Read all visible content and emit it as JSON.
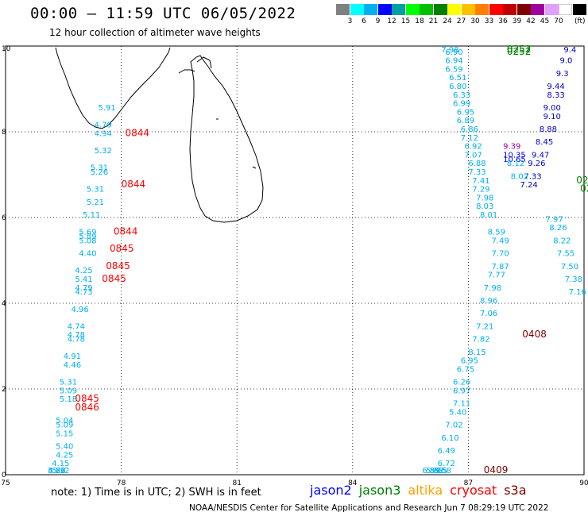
{
  "header": {
    "title": "00:00 – 11:59 UTC 06/05/2022",
    "subtitle": "12 hour collection of altimeter wave heights"
  },
  "legend": {
    "ticks": [
      "3",
      "6",
      "9",
      "12",
      "15",
      "18",
      "21",
      "24",
      "27",
      "30",
      "33",
      "36",
      "39",
      "42",
      "45",
      "70"
    ],
    "unit": "(ft)",
    "colors": [
      "#808080",
      "#00ffff",
      "#00b0f0",
      "#0000ff",
      "#00a0a0",
      "#00ff00",
      "#00c000",
      "#008000",
      "#ffff00",
      "#ffc000",
      "#ff8000",
      "#ff0000",
      "#c00000",
      "#800000",
      "#a000a0",
      "#e0a0ff",
      "#ffffff",
      "#000000"
    ]
  },
  "axes": {
    "x_ticks": [
      "75",
      "78",
      "81",
      "84",
      "87",
      "90"
    ],
    "y_ticks": [
      "0",
      "2",
      "4",
      "6",
      "8",
      "10"
    ]
  },
  "map_data": {
    "extent": {
      "lon": [
        75,
        90
      ],
      "lat": [
        0,
        10
      ]
    },
    "west_track": [
      {
        "lon": 77.4,
        "lat": 8.5,
        "v": "5.91"
      },
      {
        "lon": 77.3,
        "lat": 8.1,
        "v": "4.79"
      },
      {
        "lon": 77.3,
        "lat": 7.9,
        "v": "4.94"
      },
      {
        "lon": 77.3,
        "lat": 7.5,
        "v": "5.32"
      },
      {
        "lon": 77.2,
        "lat": 7.1,
        "v": "5.31"
      },
      {
        "lon": 77.2,
        "lat": 7.0,
        "v": "5.26"
      },
      {
        "lon": 77.1,
        "lat": 6.6,
        "v": "5.31"
      },
      {
        "lon": 77.1,
        "lat": 6.3,
        "v": "5.21"
      },
      {
        "lon": 77.0,
        "lat": 6.0,
        "v": "5.11"
      },
      {
        "lon": 76.9,
        "lat": 5.6,
        "v": "5.69"
      },
      {
        "lon": 76.9,
        "lat": 5.5,
        "v": "5.89"
      },
      {
        "lon": 76.9,
        "lat": 5.4,
        "v": "5.08"
      },
      {
        "lon": 76.9,
        "lat": 5.1,
        "v": "4.40"
      },
      {
        "lon": 76.8,
        "lat": 4.7,
        "v": "4.25"
      },
      {
        "lon": 76.8,
        "lat": 4.5,
        "v": "5.41"
      },
      {
        "lon": 76.8,
        "lat": 4.3,
        "v": "4.79"
      },
      {
        "lon": 76.8,
        "lat": 4.2,
        "v": "4.73"
      },
      {
        "lon": 76.7,
        "lat": 3.8,
        "v": "4.96"
      },
      {
        "lon": 76.6,
        "lat": 3.4,
        "v": "4.74"
      },
      {
        "lon": 76.6,
        "lat": 3.2,
        "v": "4.78"
      },
      {
        "lon": 76.6,
        "lat": 3.1,
        "v": "4.78"
      },
      {
        "lon": 76.5,
        "lat": 2.7,
        "v": "4.91"
      },
      {
        "lon": 76.5,
        "lat": 2.5,
        "v": "4.46"
      },
      {
        "lon": 76.4,
        "lat": 2.1,
        "v": "5.31"
      },
      {
        "lon": 76.4,
        "lat": 1.9,
        "v": "5.09"
      },
      {
        "lon": 76.4,
        "lat": 1.7,
        "v": "5.18"
      },
      {
        "lon": 76.3,
        "lat": 1.2,
        "v": "5.04"
      },
      {
        "lon": 76.3,
        "lat": 1.1,
        "v": "5.09"
      },
      {
        "lon": 76.3,
        "lat": 0.9,
        "v": "5.15"
      },
      {
        "lon": 76.3,
        "lat": 0.6,
        "v": "5.40"
      },
      {
        "lon": 76.3,
        "lat": 0.4,
        "v": "4.25"
      },
      {
        "lon": 76.2,
        "lat": 0.2,
        "v": "4.15"
      },
      {
        "lon": 76.2,
        "lat": -0.6,
        "v": "5.12"
      },
      {
        "lon": 76.1,
        "lat": -0.9,
        "v": "4.57"
      },
      {
        "lon": 76.1,
        "lat": -1.0,
        "v": "4.83"
      },
      {
        "lon": 76.1,
        "lat": -1.2,
        "v": "5.26"
      }
    ],
    "west_times": [
      {
        "lon": 78.1,
        "lat": 7.9,
        "t": "0844"
      },
      {
        "lon": 78.0,
        "lat": 6.7,
        "t": "0844"
      },
      {
        "lon": 77.8,
        "lat": 5.6,
        "t": "0844"
      },
      {
        "lon": 77.7,
        "lat": 5.2,
        "t": "0845"
      },
      {
        "lon": 77.6,
        "lat": 4.8,
        "t": "0845"
      },
      {
        "lon": 77.5,
        "lat": 4.5,
        "t": "0845"
      },
      {
        "lon": 76.8,
        "lat": 1.7,
        "t": "0845"
      },
      {
        "lon": 76.8,
        "lat": 1.5,
        "t": "0846"
      }
    ],
    "east_track": [
      {
        "lon": 87.5,
        "lat": 5.6,
        "v": "8.59"
      },
      {
        "lon": 87.6,
        "lat": 5.4,
        "v": "7.49"
      },
      {
        "lon": 87.6,
        "lat": 5.1,
        "v": "7.70"
      },
      {
        "lon": 87.6,
        "lat": 4.8,
        "v": "7.87"
      },
      {
        "lon": 87.5,
        "lat": 4.6,
        "v": "7.77"
      },
      {
        "lon": 87.4,
        "lat": 4.3,
        "v": "7.98"
      },
      {
        "lon": 87.3,
        "lat": 4.0,
        "v": "8.96"
      },
      {
        "lon": 87.3,
        "lat": 3.7,
        "v": "7.06"
      },
      {
        "lon": 87.2,
        "lat": 3.4,
        "v": "7.21"
      },
      {
        "lon": 87.1,
        "lat": 3.1,
        "v": "7.82"
      },
      {
        "lon": 87.0,
        "lat": 2.8,
        "v": "8.15"
      },
      {
        "lon": 86.8,
        "lat": 2.6,
        "v": "6.95"
      },
      {
        "lon": 86.7,
        "lat": 2.4,
        "v": "6.75"
      },
      {
        "lon": 86.6,
        "lat": 2.1,
        "v": "6.26"
      },
      {
        "lon": 86.6,
        "lat": 1.9,
        "v": "6.97"
      },
      {
        "lon": 86.6,
        "lat": 1.6,
        "v": "7.11"
      },
      {
        "lon": 86.5,
        "lat": 1.4,
        "v": "5.40"
      },
      {
        "lon": 86.4,
        "lat": 1.1,
        "v": "7.02"
      },
      {
        "lon": 86.3,
        "lat": 0.8,
        "v": "6.10"
      },
      {
        "lon": 86.2,
        "lat": 0.5,
        "v": "6.49"
      },
      {
        "lon": 86.2,
        "lat": 0.2,
        "v": "6.72"
      },
      {
        "lon": 86.1,
        "lat": -0.1,
        "v": "6.58"
      },
      {
        "lon": 86.0,
        "lat": -0.4,
        "v": "5.55"
      },
      {
        "lon": 85.9,
        "lat": -0.6,
        "v": "5.38"
      },
      {
        "lon": 85.8,
        "lat": -0.9,
        "v": "6.89"
      }
    ],
    "east_upper": [
      {
        "lon": 86.3,
        "lat": 10.0,
        "v": "7.98"
      },
      {
        "lon": 86.4,
        "lat": 9.8,
        "v": "6.90"
      },
      {
        "lon": 86.4,
        "lat": 9.6,
        "v": "6.94"
      },
      {
        "lon": 86.4,
        "lat": 9.4,
        "v": "6.59"
      },
      {
        "lon": 86.5,
        "lat": 9.2,
        "v": "6.51"
      },
      {
        "lon": 86.5,
        "lat": 9.0,
        "v": "6.80"
      },
      {
        "lon": 86.6,
        "lat": 8.8,
        "v": "6.33"
      },
      {
        "lon": 86.6,
        "lat": 8.6,
        "v": "6.99"
      },
      {
        "lon": 86.7,
        "lat": 8.4,
        "v": "6.95"
      },
      {
        "lon": 86.7,
        "lat": 8.2,
        "v": "6.89"
      },
      {
        "lon": 86.8,
        "lat": 8.0,
        "v": "6.86"
      },
      {
        "lon": 86.8,
        "lat": 7.8,
        "v": "7.12"
      },
      {
        "lon": 86.9,
        "lat": 7.6,
        "v": "6.92"
      },
      {
        "lon": 86.9,
        "lat": 7.4,
        "v": "7.07"
      },
      {
        "lon": 87.0,
        "lat": 7.2,
        "v": "6.88"
      },
      {
        "lon": 87.0,
        "lat": 7.0,
        "v": "7.33"
      },
      {
        "lon": 87.1,
        "lat": 6.8,
        "v": "7.41"
      },
      {
        "lon": 87.1,
        "lat": 6.6,
        "v": "7.29"
      },
      {
        "lon": 87.2,
        "lat": 6.4,
        "v": "7.98"
      },
      {
        "lon": 87.2,
        "lat": 6.2,
        "v": "8.03"
      },
      {
        "lon": 87.3,
        "lat": 6.0,
        "v": "8.01"
      }
    ],
    "east_far": [
      {
        "lon": 89.8,
        "lat": 9.9,
        "v": "9.4"
      },
      {
        "lon": 89.7,
        "lat": 9.6,
        "v": "9.0"
      },
      {
        "lon": 89.6,
        "lat": 9.3,
        "v": "9.3"
      },
      {
        "lon": 89.5,
        "lat": 9.0,
        "v": "9.44"
      },
      {
        "lon": 89.5,
        "lat": 8.8,
        "v": "8.33"
      },
      {
        "lon": 89.4,
        "lat": 8.5,
        "v": "9.00"
      },
      {
        "lon": 89.4,
        "lat": 8.3,
        "v": "9.10"
      },
      {
        "lon": 89.3,
        "lat": 8.0,
        "v": "8.88"
      },
      {
        "lon": 89.2,
        "lat": 7.7,
        "v": "8.45"
      },
      {
        "lon": 89.1,
        "lat": 7.4,
        "v": "9.47"
      },
      {
        "lon": 89.0,
        "lat": 7.2,
        "v": "9.26"
      },
      {
        "lon": 88.9,
        "lat": 6.9,
        "v": "7.33"
      },
      {
        "lon": 88.8,
        "lat": 6.7,
        "v": "7.24"
      }
    ],
    "east_mid": [
      {
        "lon": 87.9,
        "lat": 7.6,
        "v": "9.39",
        "color": "#a000a0"
      },
      {
        "lon": 87.9,
        "lat": 7.4,
        "v": "10.35",
        "color": "#0000ff"
      },
      {
        "lon": 87.9,
        "lat": 7.3,
        "v": "10.65",
        "color": "#0000ff"
      },
      {
        "lon": 88.0,
        "lat": 7.2,
        "v": "8.12",
        "color": "#00b0f0"
      },
      {
        "lon": 88.1,
        "lat": 6.9,
        "v": "8.02",
        "color": "#00b0f0"
      }
    ],
    "east_lower_right": [
      {
        "lon": 89.0,
        "lat": 5.9,
        "v": "7.97"
      },
      {
        "lon": 89.1,
        "lat": 5.7,
        "v": "8.26"
      },
      {
        "lon": 89.2,
        "lat": 5.4,
        "v": "8.22"
      },
      {
        "lon": 89.3,
        "lat": 5.1,
        "v": "7.55"
      },
      {
        "lon": 89.4,
        "lat": 4.8,
        "v": "7.50"
      },
      {
        "lon": 89.5,
        "lat": 4.5,
        "v": "7.38"
      },
      {
        "lon": 89.6,
        "lat": 4.2,
        "v": "7.16"
      }
    ],
    "east_times": [
      {
        "lon": 88.0,
        "lat": 10.1,
        "t": "0251",
        "color": "#008000"
      },
      {
        "lon": 88.0,
        "lat": 9.9,
        "t": "0252",
        "color": "#008000"
      },
      {
        "lon": 88.0,
        "lat": 9.8,
        "t": "0252",
        "color": "#008000"
      },
      {
        "lon": 89.8,
        "lat": 6.8,
        "t": "02",
        "color": "#008000"
      },
      {
        "lon": 89.9,
        "lat": 6.6,
        "t": "02",
        "color": "#008000"
      },
      {
        "lon": 88.4,
        "lat": 3.2,
        "t": "0408",
        "color": "#800000"
      },
      {
        "lon": 87.4,
        "lat": -0.9,
        "t": "0409",
        "color": "#800000"
      }
    ]
  },
  "footer": {
    "note": "note:  1) Time is in UTC;  2) SWH is in feet",
    "satellites": [
      {
        "name": "jason2",
        "color": "#0000ff"
      },
      {
        "name": "jason3",
        "color": "#008000"
      },
      {
        "name": "altika",
        "color": "#ffa000"
      },
      {
        "name": "cryosat",
        "color": "#ff0000"
      },
      {
        "name": "s3a",
        "color": "#800000"
      }
    ],
    "credit": "NOAA/NESDIS Center for Satellite Applications and Research    Jun  7 08:29:19 UTC 2022"
  }
}
